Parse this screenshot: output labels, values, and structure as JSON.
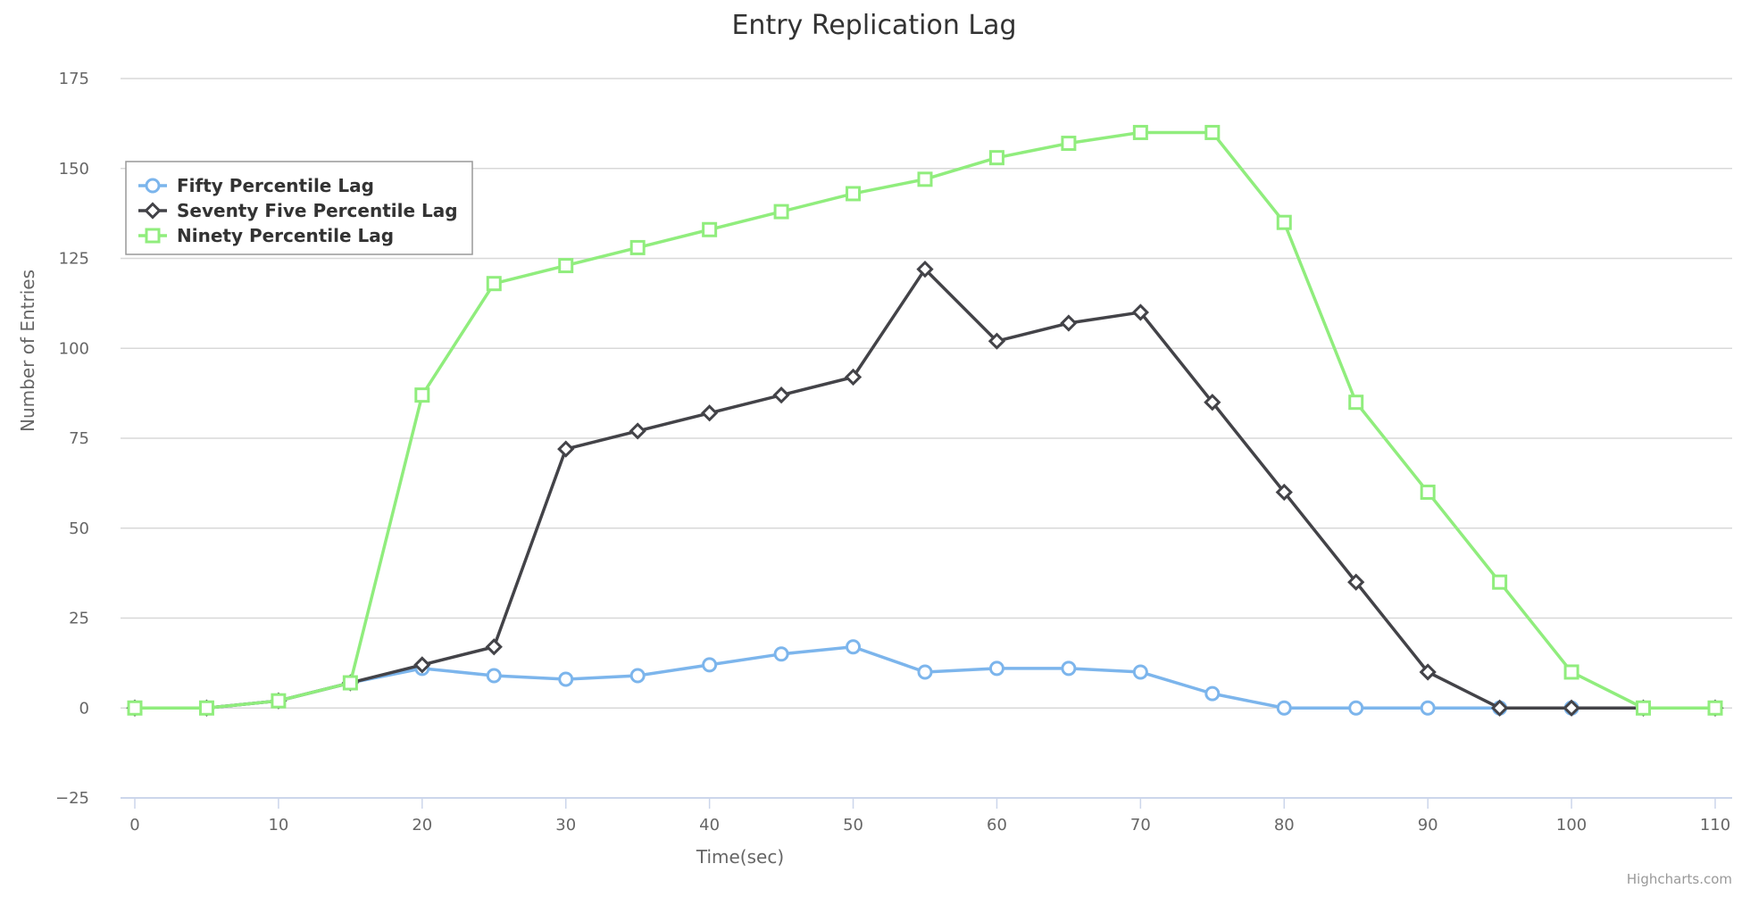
{
  "chart_data": {
    "type": "line",
    "title": "Entry Replication Lag",
    "xlabel": "Time(sec)",
    "ylabel": "Number of Entries",
    "x": [
      0,
      5,
      10,
      15,
      20,
      25,
      30,
      35,
      40,
      45,
      50,
      55,
      60,
      65,
      70,
      75,
      80,
      85,
      90,
      95,
      100,
      105,
      110
    ],
    "xlim": [
      0,
      110
    ],
    "ylim": [
      -25,
      175
    ],
    "x_ticks": [
      "0",
      "10",
      "20",
      "30",
      "40",
      "50",
      "60",
      "70",
      "80",
      "90",
      "100",
      "110"
    ],
    "y_ticks": [
      "−25",
      "0",
      "25",
      "50",
      "75",
      "100",
      "125",
      "150",
      "175"
    ],
    "grid": true,
    "legend_position": "top-left",
    "series": [
      {
        "name": "Fifty Percentile Lag",
        "color": "#7cb5ec",
        "marker": "circle",
        "values": [
          0,
          0,
          2,
          7,
          11,
          9,
          8,
          9,
          12,
          15,
          17,
          10,
          11,
          11,
          10,
          4,
          0,
          0,
          0,
          0,
          0,
          0,
          0
        ]
      },
      {
        "name": "Seventy Five Percentile Lag",
        "color": "#434348",
        "marker": "diamond",
        "values": [
          0,
          0,
          2,
          7,
          12,
          17,
          72,
          77,
          82,
          87,
          92,
          122,
          102,
          107,
          110,
          85,
          60,
          35,
          10,
          0,
          0,
          0,
          0
        ]
      },
      {
        "name": "Ninety Percentile Lag",
        "color": "#90ed7d",
        "marker": "square",
        "values": [
          0,
          0,
          2,
          7,
          87,
          118,
          123,
          128,
          133,
          138,
          143,
          147,
          153,
          157,
          160,
          160,
          135,
          85,
          60,
          35,
          10,
          0,
          0
        ]
      }
    ],
    "credits": "Highcharts.com"
  }
}
